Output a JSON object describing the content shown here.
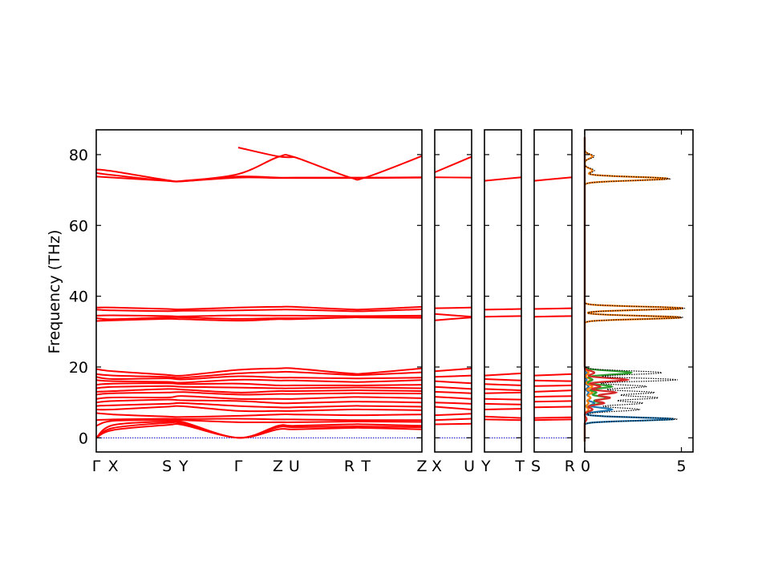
{
  "chart_data": {
    "type": "line",
    "ylabel": "Frequency (THz)",
    "ylim": [
      -4,
      87
    ],
    "yticks": [
      0,
      20,
      40,
      60,
      80
    ],
    "grid": false,
    "line_color": "#ff0000",
    "zero_line_color": "#0000cc",
    "panels": [
      {
        "id": "main",
        "segments": [
          "Γ-X",
          "X-S",
          "S-Y",
          "Y-Γ",
          "Γ-Z",
          "Z-U",
          "U-R",
          "R-T",
          "T-Z"
        ],
        "tick_labels": [
          "Γ",
          "X",
          "S",
          "Y",
          "Γ",
          "Z",
          "U",
          "R",
          "T",
          "Z"
        ],
        "bands": [
          {
            "name": "high-1",
            "values": [
              75.8,
              75.3,
              72.8,
              72.6,
              74.5,
              79.3,
              79.3,
              73.6,
              73.6,
              79.6
            ]
          },
          {
            "name": "high-2",
            "values": [
              74.8,
              74.2,
              72.6,
              72.5,
              73.8,
              73.5,
              73.5,
              73.5,
              73.5,
              73.6
            ]
          },
          {
            "name": "high-3",
            "values": [
              73.8,
              73.5,
              72.6,
              72.5,
              73.5,
              73.4,
              73.4,
              73.4,
              73.4,
              73.5
            ]
          },
          {
            "name": "high-4",
            "values": [
              null,
              null,
              null,
              null,
              82.0,
              79.5,
              79.3,
              null,
              null,
              null
            ]
          },
          {
            "name": "mid-1",
            "values": [
              36.8,
              36.8,
              36.4,
              36.3,
              36.8,
              37.0,
              37.0,
              36.3,
              36.3,
              37.0
            ]
          },
          {
            "name": "mid-2",
            "values": [
              36.2,
              36.0,
              35.8,
              35.9,
              36.0,
              36.2,
              36.2,
              35.8,
              35.8,
              36.3
            ]
          },
          {
            "name": "mid-3",
            "values": [
              34.5,
              34.6,
              34.4,
              34.3,
              34.6,
              34.5,
              34.5,
              34.4,
              34.4,
              34.5
            ]
          },
          {
            "name": "mid-4",
            "values": [
              33.8,
              33.5,
              34.0,
              34.0,
              33.6,
              33.8,
              33.8,
              34.0,
              34.0,
              33.9
            ]
          },
          {
            "name": "mid-5",
            "values": [
              33.0,
              33.2,
              33.6,
              33.5,
              33.1,
              33.5,
              33.5,
              34.0,
              34.0,
              34.0
            ]
          },
          {
            "name": "low-1",
            "values": [
              19.4,
              18.8,
              17.8,
              17.6,
              19.2,
              19.6,
              19.6,
              18.2,
              18.2,
              19.6
            ]
          },
          {
            "name": "low-2",
            "values": [
              18.0,
              17.6,
              17.2,
              17.0,
              18.2,
              18.6,
              18.6,
              17.8,
              17.8,
              18.5
            ]
          },
          {
            "name": "low-3",
            "values": [
              17.2,
              16.6,
              16.8,
              16.5,
              17.4,
              17.0,
              17.0,
              16.8,
              16.8,
              17.0
            ]
          },
          {
            "name": "low-4",
            "values": [
              16.3,
              16.0,
              15.8,
              15.6,
              16.4,
              16.2,
              16.2,
              15.8,
              15.8,
              16.3
            ]
          },
          {
            "name": "low-5",
            "values": [
              15.0,
              15.3,
              15.4,
              15.2,
              15.3,
              14.8,
              14.8,
              14.8,
              14.8,
              15.0
            ]
          },
          {
            "name": "low-6",
            "values": [
              14.0,
              14.4,
              14.6,
              14.4,
              14.2,
              14.0,
              14.0,
              14.2,
              14.2,
              14.0
            ]
          },
          {
            "name": "low-7",
            "values": [
              13.0,
              13.2,
              13.8,
              13.6,
              12.8,
              13.2,
              13.2,
              13.4,
              13.4,
              13.2
            ]
          },
          {
            "name": "low-8",
            "values": [
              12.2,
              12.6,
              12.8,
              12.9,
              12.2,
              12.4,
              12.4,
              12.6,
              12.6,
              12.5
            ]
          },
          {
            "name": "low-9",
            "values": [
              11.0,
              11.4,
              11.4,
              11.8,
              11.0,
              11.0,
              11.0,
              11.5,
              11.5,
              11.2
            ]
          },
          {
            "name": "low-10",
            "values": [
              10.0,
              10.4,
              10.8,
              10.6,
              10.4,
              9.8,
              9.8,
              10.2,
              10.2,
              10.0
            ]
          },
          {
            "name": "low-11",
            "values": [
              9.0,
              9.2,
              9.6,
              9.8,
              9.0,
              8.6,
              8.6,
              9.0,
              9.0,
              8.8
            ]
          },
          {
            "name": "low-12",
            "values": [
              8.0,
              8.0,
              8.8,
              8.9,
              7.6,
              7.6,
              7.6,
              8.0,
              8.0,
              7.8
            ]
          },
          {
            "name": "low-13",
            "values": [
              7.0,
              6.6,
              6.0,
              5.9,
              6.2,
              6.6,
              6.6,
              6.4,
              6.4,
              6.6
            ]
          },
          {
            "name": "low-14",
            "values": [
              5.0,
              5.2,
              5.4,
              5.3,
              5.4,
              5.2,
              5.2,
              5.0,
              5.0,
              5.0
            ]
          },
          {
            "name": "low-15",
            "values": [
              3.4,
              4.8,
              5.0,
              5.0,
              4.4,
              4.4,
              4.4,
              4.6,
              4.6,
              4.5
            ]
          },
          {
            "name": "acoustic-1",
            "values": [
              0,
              3.6,
              4.6,
              4.4,
              0,
              3.4,
              3.4,
              3.8,
              3.8,
              3.4
            ]
          },
          {
            "name": "acoustic-2",
            "values": [
              0,
              2.8,
              4.2,
              4.0,
              0,
              3.0,
              3.0,
              3.2,
              3.2,
              3.0
            ]
          },
          {
            "name": "acoustic-3",
            "values": [
              0,
              2.2,
              3.6,
              3.6,
              0,
              2.4,
              2.4,
              2.8,
              2.8,
              2.4
            ]
          }
        ]
      },
      {
        "id": "xu",
        "segments": [
          "X-U"
        ],
        "tick_labels": [
          "X",
          "U"
        ],
        "bands": [
          {
            "name": "high-1",
            "values": [
              75.0,
              79.4
            ]
          },
          {
            "name": "high-2",
            "values": [
              73.6,
              73.5
            ]
          },
          {
            "name": "mid-1",
            "values": [
              36.6,
              36.8
            ]
          },
          {
            "name": "mid-2",
            "values": [
              35.0,
              34.2
            ]
          },
          {
            "name": "mid-3",
            "values": [
              33.2,
              34.0
            ]
          },
          {
            "name": "low-1",
            "values": [
              18.8,
              19.6
            ]
          },
          {
            "name": "low-2",
            "values": [
              17.2,
              17.6
            ]
          },
          {
            "name": "low-3",
            "values": [
              16.0,
              15.4
            ]
          },
          {
            "name": "low-4",
            "values": [
              14.4,
              13.8
            ]
          },
          {
            "name": "low-5",
            "values": [
              13.0,
              12.6
            ]
          },
          {
            "name": "low-6",
            "values": [
              11.6,
              11.0
            ]
          },
          {
            "name": "low-7",
            "values": [
              10.0,
              9.6
            ]
          },
          {
            "name": "low-8",
            "values": [
              8.8,
              8.0
            ]
          },
          {
            "name": "low-9",
            "values": [
              6.4,
              6.8
            ]
          },
          {
            "name": "low-10",
            "values": [
              5.0,
              5.4
            ]
          },
          {
            "name": "low-11",
            "values": [
              3.8,
              4.0
            ]
          }
        ]
      },
      {
        "id": "yt",
        "segments": [
          "Y-T"
        ],
        "tick_labels": [
          "Y",
          "T"
        ],
        "bands": [
          {
            "name": "high-1",
            "values": [
              72.6,
              73.6
            ]
          },
          {
            "name": "mid-1",
            "values": [
              36.2,
              36.4
            ]
          },
          {
            "name": "mid-2",
            "values": [
              34.2,
              34.4
            ]
          },
          {
            "name": "low-1",
            "values": [
              17.6,
              18.2
            ]
          },
          {
            "name": "low-2",
            "values": [
              16.6,
              16.2
            ]
          },
          {
            "name": "low-3",
            "values": [
              15.2,
              14.8
            ]
          },
          {
            "name": "low-4",
            "values": [
              13.8,
              13.4
            ]
          },
          {
            "name": "low-5",
            "values": [
              12.6,
              12.8
            ]
          },
          {
            "name": "low-6",
            "values": [
              11.0,
              10.8
            ]
          },
          {
            "name": "low-7",
            "values": [
              9.6,
              9.4
            ]
          },
          {
            "name": "low-8",
            "values": [
              8.0,
              8.2
            ]
          },
          {
            "name": "low-9",
            "values": [
              6.0,
              5.6
            ]
          },
          {
            "name": "low-10",
            "values": [
              5.2,
              5.0
            ]
          }
        ]
      },
      {
        "id": "sr",
        "segments": [
          "S-R"
        ],
        "tick_labels": [
          "S",
          "R"
        ],
        "bands": [
          {
            "name": "high-1",
            "values": [
              72.6,
              73.6
            ]
          },
          {
            "name": "mid-1",
            "values": [
              36.4,
              36.6
            ]
          },
          {
            "name": "mid-2",
            "values": [
              34.2,
              34.4
            ]
          },
          {
            "name": "low-1",
            "values": [
              17.6,
              18.0
            ]
          },
          {
            "name": "low-2",
            "values": [
              16.2,
              16.0
            ]
          },
          {
            "name": "low-3",
            "values": [
              14.6,
              14.8
            ]
          },
          {
            "name": "low-4",
            "values": [
              13.0,
              13.4
            ]
          },
          {
            "name": "low-5",
            "values": [
              11.6,
              11.8
            ]
          },
          {
            "name": "low-6",
            "values": [
              10.2,
              10.4
            ]
          },
          {
            "name": "low-7",
            "values": [
              8.6,
              8.8
            ]
          },
          {
            "name": "low-8",
            "values": [
              5.6,
              5.8
            ]
          },
          {
            "name": "low-9",
            "values": [
              5.0,
              5.2
            ]
          }
        ]
      }
    ],
    "dos": {
      "xlim": [
        0,
        5.6
      ],
      "xticks": [
        0,
        5
      ],
      "total_color": "#000000",
      "partial_colors": [
        "#1f77b4",
        "#ff7f0e",
        "#2ca02c",
        "#d62728"
      ],
      "peaks": [
        {
          "f": 73.2,
          "w": 0.5,
          "total": 4.4,
          "parts": [
            0.0,
            4.3,
            0.0,
            0.0
          ]
        },
        {
          "f": 79.5,
          "w": 0.6,
          "total": 0.5,
          "parts": [
            0.0,
            0.4,
            0.0,
            0.0
          ]
        },
        {
          "f": 75.5,
          "w": 0.6,
          "total": 0.5,
          "parts": [
            0.0,
            0.4,
            0.0,
            0.0
          ]
        },
        {
          "f": 36.6,
          "w": 0.45,
          "total": 5.2,
          "parts": [
            0.0,
            5.1,
            0.0,
            0.0
          ]
        },
        {
          "f": 34.0,
          "w": 0.45,
          "total": 5.1,
          "parts": [
            0.0,
            5.0,
            0.0,
            0.0
          ]
        },
        {
          "f": 18.4,
          "w": 0.5,
          "total": 4.0,
          "parts": [
            0.1,
            0.2,
            2.4,
            0.5
          ]
        },
        {
          "f": 16.4,
          "w": 0.45,
          "total": 4.8,
          "parts": [
            0.1,
            0.3,
            0.4,
            2.2
          ]
        },
        {
          "f": 14.5,
          "w": 0.45,
          "total": 3.2,
          "parts": [
            0.2,
            0.4,
            1.4,
            0.8
          ]
        },
        {
          "f": 12.8,
          "w": 0.45,
          "total": 3.6,
          "parts": [
            0.2,
            0.4,
            0.6,
            1.6
          ]
        },
        {
          "f": 11.3,
          "w": 0.45,
          "total": 3.8,
          "parts": [
            0.3,
            0.3,
            1.2,
            1.3
          ]
        },
        {
          "f": 9.8,
          "w": 0.45,
          "total": 3.0,
          "parts": [
            0.5,
            0.2,
            0.8,
            1.0
          ]
        },
        {
          "f": 8.0,
          "w": 0.5,
          "total": 2.8,
          "parts": [
            1.4,
            0.2,
            0.4,
            0.4
          ]
        },
        {
          "f": 5.3,
          "w": 0.45,
          "total": 4.8,
          "parts": [
            4.6,
            0.1,
            0.1,
            0.1
          ]
        }
      ]
    }
  }
}
